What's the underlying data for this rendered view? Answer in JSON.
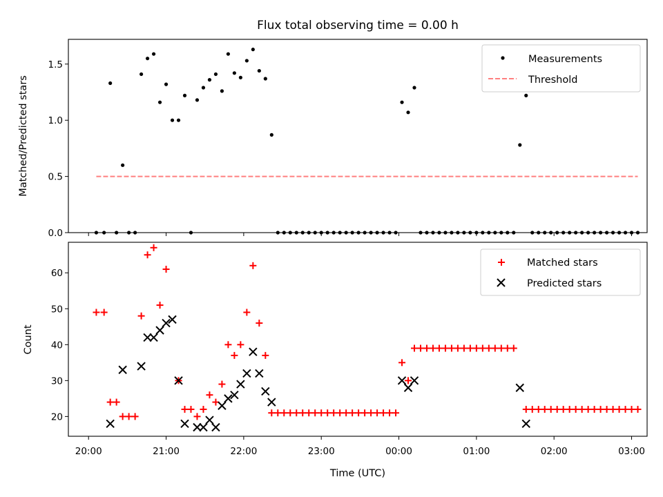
{
  "colors": {
    "measurements": "#000000",
    "threshold": "#ff7f7f",
    "matched": "#ff0000",
    "predicted": "#000000"
  },
  "chart_data": [
    {
      "type": "scatter",
      "title": "Flux total observing time = 0.00 h",
      "xlabel": "",
      "ylabel": "Matched/Predicted stars",
      "x_unit": "minutes after 20:00 UTC",
      "xlim": [
        -13,
        360
      ],
      "ylim": [
        0,
        1.72
      ],
      "yticks": [
        "0.0",
        "0.5",
        "1.0",
        "1.5"
      ],
      "legend": {
        "placement": "top-right",
        "entries": [
          "Measurements",
          "Threshold"
        ]
      },
      "series": [
        {
          "name": "Measurements",
          "marker": "dot",
          "points": [
            [
              5,
              0
            ],
            [
              10,
              0
            ],
            [
              14,
              1.33
            ],
            [
              18,
              0
            ],
            [
              22,
              0.6
            ],
            [
              26,
              0
            ],
            [
              30,
              0
            ],
            [
              34,
              1.41
            ],
            [
              38,
              1.55
            ],
            [
              42,
              1.59
            ],
            [
              46,
              1.16
            ],
            [
              50,
              1.32
            ],
            [
              54,
              1.0
            ],
            [
              58,
              1.0
            ],
            [
              62,
              1.22
            ],
            [
              66,
              0
            ],
            [
              70,
              1.18
            ],
            [
              74,
              1.29
            ],
            [
              78,
              1.36
            ],
            [
              82,
              1.41
            ],
            [
              86,
              1.26
            ],
            [
              90,
              1.59
            ],
            [
              94,
              1.42
            ],
            [
              98,
              1.38
            ],
            [
              102,
              1.53
            ],
            [
              106,
              1.63
            ],
            [
              110,
              1.44
            ],
            [
              114,
              1.37
            ],
            [
              118,
              0.87
            ],
            [
              122,
              0
            ],
            [
              126,
              0
            ],
            [
              130,
              0
            ],
            [
              134,
              0
            ],
            [
              138,
              0
            ],
            [
              142,
              0
            ],
            [
              146,
              0
            ],
            [
              150,
              0
            ],
            [
              154,
              0
            ],
            [
              158,
              0
            ],
            [
              162,
              0
            ],
            [
              166,
              0
            ],
            [
              170,
              0
            ],
            [
              174,
              0
            ],
            [
              178,
              0
            ],
            [
              182,
              0
            ],
            [
              186,
              0
            ],
            [
              190,
              0
            ],
            [
              194,
              0
            ],
            [
              198,
              0
            ],
            [
              202,
              1.16
            ],
            [
              206,
              1.07
            ],
            [
              210,
              1.29
            ],
            [
              214,
              0
            ],
            [
              218,
              0
            ],
            [
              222,
              0
            ],
            [
              226,
              0
            ],
            [
              230,
              0
            ],
            [
              234,
              0
            ],
            [
              238,
              0
            ],
            [
              242,
              0
            ],
            [
              246,
              0
            ],
            [
              250,
              0
            ],
            [
              254,
              0
            ],
            [
              258,
              0
            ],
            [
              262,
              0
            ],
            [
              266,
              0
            ],
            [
              270,
              0
            ],
            [
              274,
              0
            ],
            [
              278,
              0.78
            ],
            [
              282,
              1.22
            ],
            [
              286,
              0
            ],
            [
              290,
              0
            ],
            [
              294,
              0
            ],
            [
              298,
              0
            ],
            [
              302,
              0
            ],
            [
              306,
              0
            ],
            [
              310,
              0
            ],
            [
              314,
              0
            ],
            [
              318,
              0
            ],
            [
              322,
              0
            ],
            [
              326,
              0
            ],
            [
              330,
              0
            ],
            [
              334,
              0
            ],
            [
              338,
              0
            ],
            [
              342,
              0
            ],
            [
              346,
              0
            ],
            [
              350,
              0
            ],
            [
              354,
              0
            ]
          ]
        },
        {
          "name": "Threshold",
          "style": "dashed",
          "points": [
            [
              5,
              0.5
            ],
            [
              354,
              0.5
            ]
          ]
        }
      ]
    },
    {
      "type": "scatter",
      "title": "",
      "xlabel": "Time (UTC)",
      "ylabel": "Count",
      "x_unit": "minutes after 20:00 UTC",
      "xlim": [
        -13,
        360
      ],
      "ylim": [
        14.5,
        68.5
      ],
      "yticks": [
        "20",
        "30",
        "40",
        "50",
        "60"
      ],
      "xticks": [
        {
          "value": 0,
          "label": "20:00"
        },
        {
          "value": 50,
          "label": "21:00"
        },
        {
          "value": 100,
          "label": "22:00"
        },
        {
          "value": 150,
          "label": "23:00"
        },
        {
          "value": 200,
          "label": "00:00"
        },
        {
          "value": 250,
          "label": "01:00"
        },
        {
          "value": 300,
          "label": "02:00"
        },
        {
          "value": 350,
          "label": "03:00"
        }
      ],
      "legend": {
        "placement": "top-right",
        "entries": [
          "Matched stars",
          "Predicted stars"
        ]
      },
      "series": [
        {
          "name": "Matched stars",
          "marker": "plus",
          "points": [
            [
              5,
              49
            ],
            [
              10,
              49
            ],
            [
              14,
              24
            ],
            [
              18,
              24
            ],
            [
              22,
              20
            ],
            [
              26,
              20
            ],
            [
              30,
              20
            ],
            [
              34,
              48
            ],
            [
              38,
              65
            ],
            [
              42,
              67
            ],
            [
              46,
              51
            ],
            [
              50,
              61
            ],
            [
              58,
              30
            ],
            [
              62,
              22
            ],
            [
              66,
              22
            ],
            [
              70,
              20
            ],
            [
              74,
              22
            ],
            [
              78,
              26
            ],
            [
              82,
              24
            ],
            [
              86,
              29
            ],
            [
              90,
              40
            ],
            [
              94,
              37
            ],
            [
              98,
              40
            ],
            [
              102,
              49
            ],
            [
              106,
              62
            ],
            [
              110,
              46
            ],
            [
              114,
              37
            ],
            [
              118,
              21
            ],
            [
              122,
              21
            ],
            [
              126,
              21
            ],
            [
              130,
              21
            ],
            [
              134,
              21
            ],
            [
              138,
              21
            ],
            [
              142,
              21
            ],
            [
              146,
              21
            ],
            [
              150,
              21
            ],
            [
              154,
              21
            ],
            [
              158,
              21
            ],
            [
              162,
              21
            ],
            [
              166,
              21
            ],
            [
              170,
              21
            ],
            [
              174,
              21
            ],
            [
              178,
              21
            ],
            [
              182,
              21
            ],
            [
              186,
              21
            ],
            [
              190,
              21
            ],
            [
              194,
              21
            ],
            [
              198,
              21
            ],
            [
              202,
              35
            ],
            [
              206,
              30
            ],
            [
              210,
              39
            ],
            [
              214,
              39
            ],
            [
              218,
              39
            ],
            [
              222,
              39
            ],
            [
              226,
              39
            ],
            [
              230,
              39
            ],
            [
              234,
              39
            ],
            [
              238,
              39
            ],
            [
              242,
              39
            ],
            [
              246,
              39
            ],
            [
              250,
              39
            ],
            [
              254,
              39
            ],
            [
              258,
              39
            ],
            [
              262,
              39
            ],
            [
              266,
              39
            ],
            [
              270,
              39
            ],
            [
              274,
              39
            ],
            [
              282,
              22
            ],
            [
              286,
              22
            ],
            [
              290,
              22
            ],
            [
              294,
              22
            ],
            [
              298,
              22
            ],
            [
              302,
              22
            ],
            [
              306,
              22
            ],
            [
              310,
              22
            ],
            [
              314,
              22
            ],
            [
              318,
              22
            ],
            [
              322,
              22
            ],
            [
              326,
              22
            ],
            [
              330,
              22
            ],
            [
              334,
              22
            ],
            [
              338,
              22
            ],
            [
              342,
              22
            ],
            [
              346,
              22
            ],
            [
              350,
              22
            ],
            [
              354,
              22
            ]
          ]
        },
        {
          "name": "Predicted stars",
          "marker": "x",
          "points": [
            [
              14,
              18
            ],
            [
              22,
              33
            ],
            [
              34,
              34
            ],
            [
              38,
              42
            ],
            [
              42,
              42
            ],
            [
              46,
              44
            ],
            [
              50,
              46
            ],
            [
              54,
              47
            ],
            [
              58,
              30
            ],
            [
              62,
              18
            ],
            [
              70,
              17
            ],
            [
              74,
              17
            ],
            [
              78,
              19
            ],
            [
              82,
              17
            ],
            [
              86,
              23
            ],
            [
              90,
              25
            ],
            [
              94,
              26
            ],
            [
              98,
              29
            ],
            [
              102,
              32
            ],
            [
              106,
              38
            ],
            [
              110,
              32
            ],
            [
              114,
              27
            ],
            [
              118,
              24
            ],
            [
              202,
              30
            ],
            [
              206,
              28
            ],
            [
              210,
              30
            ],
            [
              278,
              28
            ],
            [
              282,
              18
            ]
          ]
        }
      ]
    }
  ]
}
